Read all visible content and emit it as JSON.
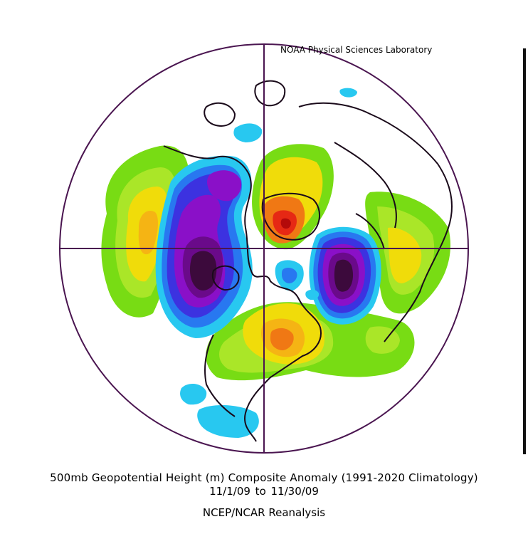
{
  "credit": "NOAA Physical Sciences Laboratory",
  "title": "500mb Geopotential Height (m) Composite Anomaly (1991-2020 Climatology)",
  "date_range": "11/1/09   to 11/30/09",
  "source": "NCEP/NCAR Reanalysis",
  "colors": {
    "frame": "#4a1550",
    "coast": "#1a0a1a",
    "neg_darkest": "#3c0a3c",
    "neg_dark": "#6a0a8a",
    "neg_mid": "#8a10c8",
    "neg_light": "#3c32e0",
    "neg_lighter": "#2878f0",
    "neg_lightest": "#28c8f0",
    "pos_light": "#78dc14",
    "pos_mid": "#aae628",
    "pos_high": "#f0dc0a",
    "pos_higher": "#f5b414",
    "pos_highest": "#f07814",
    "pos_peak": "#e62814",
    "pos_max": "#b40a0a"
  }
}
